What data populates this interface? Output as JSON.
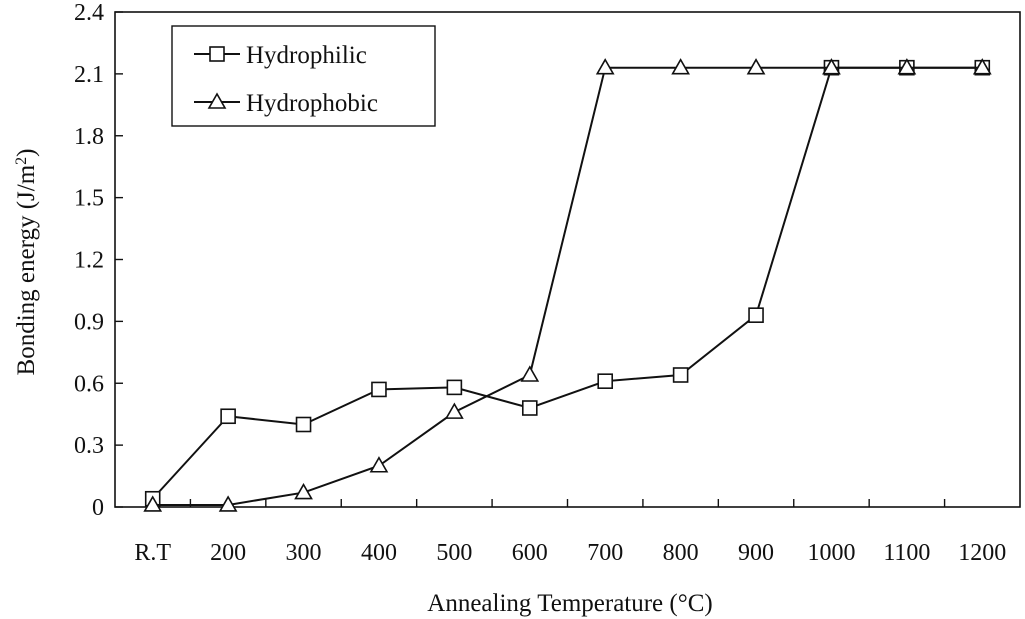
{
  "chart_data": {
    "type": "line",
    "title": "",
    "xlabel": "Annealing Temperature (°C)",
    "ylabel_main": "Bonding energy (J/m",
    "ylabel_sup": "2",
    "ylabel_close": ")",
    "categories": [
      "R.T",
      "200",
      "300",
      "400",
      "500",
      "600",
      "700",
      "800",
      "900",
      "1000",
      "1100",
      "1200"
    ],
    "ylim": [
      0,
      2.4
    ],
    "yticks": [
      "0",
      "0.3",
      "0.6",
      "0.9",
      "1.2",
      "1.5",
      "1.8",
      "2.1",
      "2.4"
    ],
    "grid": false,
    "legend_position": "top-left",
    "series": [
      {
        "name": "Hydrophilic",
        "marker": "square",
        "values": [
          0.04,
          0.44,
          0.4,
          0.57,
          0.58,
          0.48,
          0.61,
          0.64,
          0.93,
          2.13,
          2.13,
          2.13
        ]
      },
      {
        "name": "Hydrophobic",
        "marker": "triangle",
        "values": [
          0.01,
          0.01,
          0.07,
          0.2,
          0.46,
          0.64,
          2.13,
          2.13,
          2.13,
          2.13,
          2.13,
          2.13
        ]
      }
    ]
  }
}
